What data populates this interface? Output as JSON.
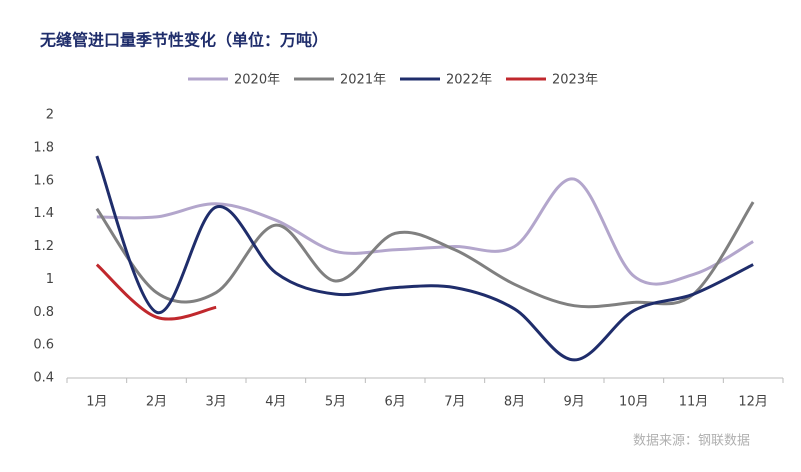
{
  "chart_data": {
    "type": "line",
    "title": "无缝管进口量季节性变化（单位：万吨）",
    "source": "数据来源：钢联数据",
    "categories": [
      "1月",
      "2月",
      "3月",
      "4月",
      "5月",
      "6月",
      "7月",
      "8月",
      "9月",
      "10月",
      "11月",
      "12月"
    ],
    "series": [
      {
        "name": "2020年",
        "color": "#b3a6cc",
        "values": [
          1.38,
          1.38,
          1.46,
          1.36,
          1.17,
          1.18,
          1.2,
          1.2,
          1.61,
          1.02,
          1.03,
          1.23
        ]
      },
      {
        "name": "2021年",
        "color": "#808080",
        "values": [
          1.43,
          0.92,
          0.92,
          1.33,
          0.99,
          1.28,
          1.18,
          0.97,
          0.84,
          0.86,
          0.91,
          1.47
        ]
      },
      {
        "name": "2022年",
        "color": "#1f2d6b",
        "values": [
          1.75,
          0.8,
          1.44,
          1.04,
          0.91,
          0.95,
          0.95,
          0.82,
          0.51,
          0.81,
          0.91,
          1.09
        ]
      },
      {
        "name": "2023年",
        "color": "#c0282d",
        "values": [
          1.09,
          0.77,
          0.83,
          null,
          null,
          null,
          null,
          null,
          null,
          null,
          null,
          null
        ]
      }
    ],
    "ylim": [
      0.4,
      2
    ],
    "yticks": [
      0.4,
      0.6,
      0.8,
      1,
      1.2,
      1.4,
      1.6,
      1.8,
      2
    ],
    "legend": "top",
    "grid": false
  }
}
